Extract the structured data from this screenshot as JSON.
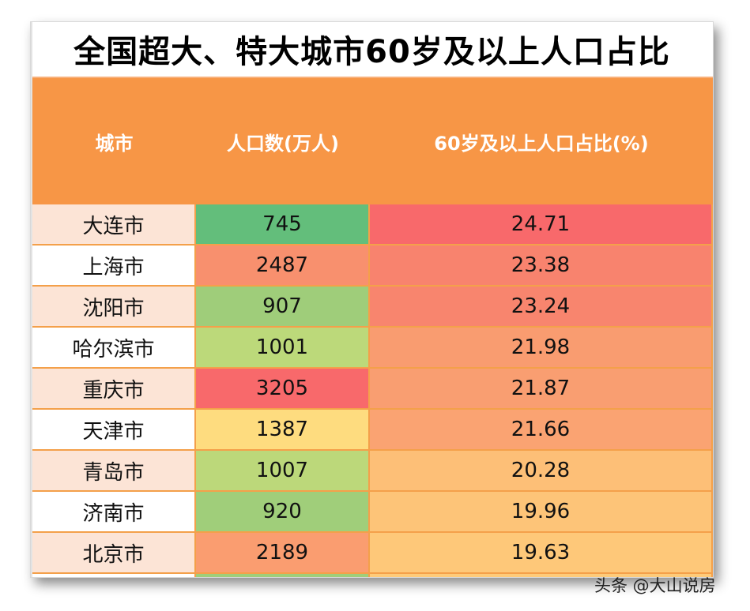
{
  "title": "全国超大、特大城市60岁及以上人口占比",
  "headers": {
    "city": "城市",
    "population": "人口数(万人)",
    "ratio": "60岁及以上人口占比(%)"
  },
  "rows": [
    {
      "city": "大连市",
      "population": "745",
      "ratio": "24.71",
      "pop_color": "#63be7b",
      "ratio_color": "#f8696b",
      "city_color": "#fce4d6"
    },
    {
      "city": "上海市",
      "population": "2487",
      "ratio": "23.38",
      "pop_color": "#f8906e",
      "ratio_color": "#f8836e",
      "city_color": "#ffffff"
    },
    {
      "city": "沈阳市",
      "population": "907",
      "ratio": "23.24",
      "pop_color": "#9fcd7a",
      "ratio_color": "#f8856e",
      "city_color": "#fce4d6"
    },
    {
      "city": "哈尔滨市",
      "population": "1001",
      "ratio": "21.98",
      "pop_color": "#bcd97a",
      "ratio_color": "#f99c70",
      "city_color": "#ffffff"
    },
    {
      "city": "重庆市",
      "population": "3205",
      "ratio": "21.87",
      "pop_color": "#f8696b",
      "ratio_color": "#f99e71",
      "city_color": "#fce4d6"
    },
    {
      "city": "天津市",
      "population": "1387",
      "ratio": "21.66",
      "pop_color": "#fedc7f",
      "ratio_color": "#faa372",
      "city_color": "#ffffff"
    },
    {
      "city": "青岛市",
      "population": "1007",
      "ratio": "20.28",
      "pop_color": "#bcd87a",
      "ratio_color": "#fdbf77",
      "city_color": "#fce4d6"
    },
    {
      "city": "济南市",
      "population": "920",
      "ratio": "19.96",
      "pop_color": "#a0ce7a",
      "ratio_color": "#fdc478",
      "city_color": "#ffffff"
    },
    {
      "city": "北京市",
      "population": "2189",
      "ratio": "19.63",
      "pop_color": "#fa9d70",
      "ratio_color": "#fec879",
      "city_color": "#fce4d6"
    },
    {
      "city": "",
      "population": "",
      "ratio": "",
      "pop_color": "#a0ce7a",
      "ratio_color": "#fecb7a",
      "city_color": "#ffffff"
    }
  ],
  "credit": "头条 @大山说房"
}
